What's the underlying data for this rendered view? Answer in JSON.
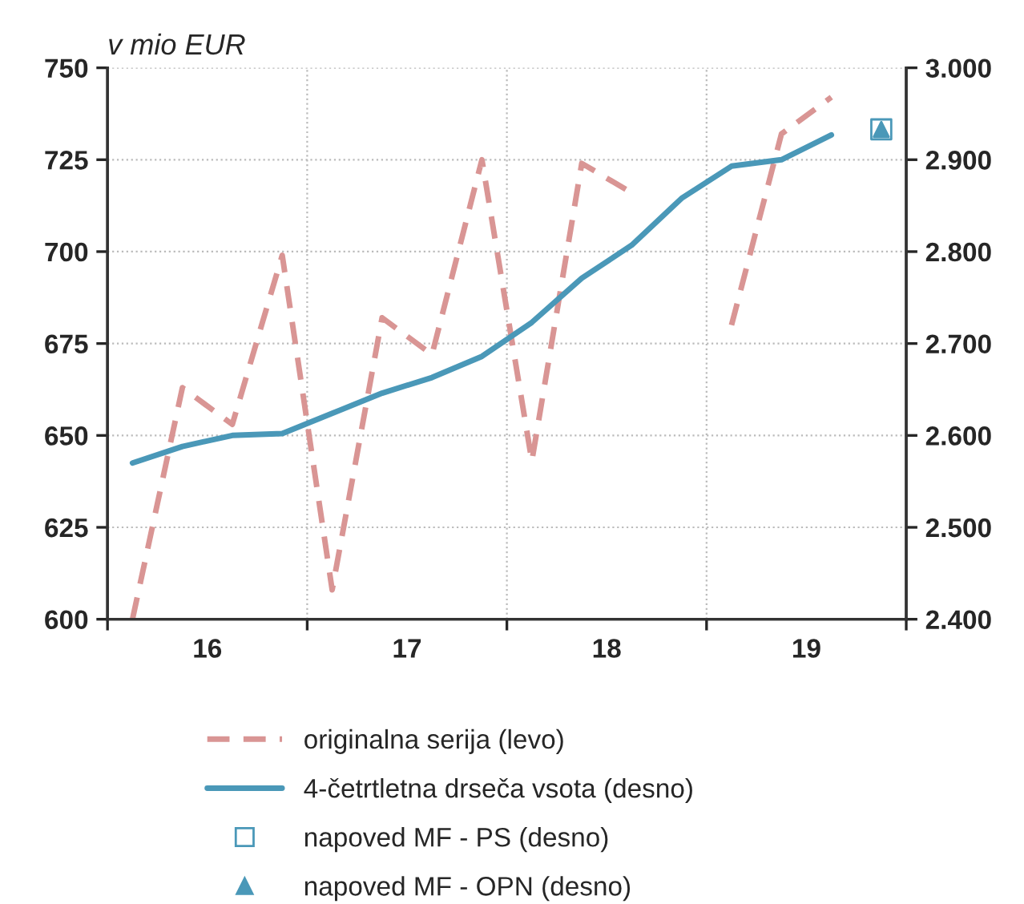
{
  "chart_data": {
    "type": "line",
    "title": "v mio EUR",
    "x": [
      15.625,
      15.875,
      16.125,
      16.375,
      16.625,
      16.875,
      17.125,
      17.375,
      17.625,
      17.875,
      18.125,
      18.375,
      18.625,
      18.875,
      19.125
    ],
    "xlim": [
      15.5,
      19.5
    ],
    "xticks": [
      {
        "value": 15.5,
        "label": null
      },
      16,
      {
        "value": 16.5,
        "label": null
      },
      17,
      {
        "value": 17.5,
        "label": null
      },
      18,
      {
        "value": 18.5,
        "label": null
      },
      19,
      {
        "value": 19.5,
        "label": null
      }
    ],
    "ylim": [
      600,
      750
    ],
    "yticks": [
      600,
      625,
      650,
      675,
      700,
      725,
      750
    ],
    "y2lim": [
      2400,
      3000
    ],
    "y2ticks": [
      {
        "value": 2400,
        "label": "2.400"
      },
      {
        "value": 2500,
        "label": "2.500"
      },
      {
        "value": 2600,
        "label": "2.600"
      },
      {
        "value": 2700,
        "label": "2.700"
      },
      {
        "value": 2800,
        "label": "2.800"
      },
      {
        "value": 2900,
        "label": "2.900"
      },
      {
        "value": 3000,
        "label": "3.000"
      }
    ],
    "grid": true,
    "legend": "bottom",
    "series": [
      {
        "name": "originalna serija (levo)",
        "line_style": "dashed",
        "color": "#d99594",
        "values": [
          600,
          663,
          653,
          699,
          608,
          682,
          672,
          725,
          643,
          724,
          716,
          null,
          680,
          732,
          742
        ]
      },
      {
        "name": "4-četrtletna drseča vsota (desno)",
        "axis": "y2",
        "line_style": "solid",
        "color": "#4a98b8",
        "values": [
          2570,
          2588,
          2600,
          2602,
          2624,
          2646,
          2663,
          2686,
          2723,
          2771,
          2807,
          2858,
          2893,
          2900,
          2927
        ]
      },
      {
        "name": "napoved MF - PS (desno)",
        "type": "scatter",
        "axis": "y2",
        "marker": "square",
        "color": "#4a98b8",
        "x": [
          19.375
        ],
        "values": [
          2933
        ]
      },
      {
        "name": "napoved MF - OPN (desno)",
        "type": "scatter",
        "axis": "y2",
        "marker": "triangle",
        "color": "#4a98b8",
        "x": [
          19.375
        ],
        "values": [
          2933
        ]
      }
    ]
  }
}
